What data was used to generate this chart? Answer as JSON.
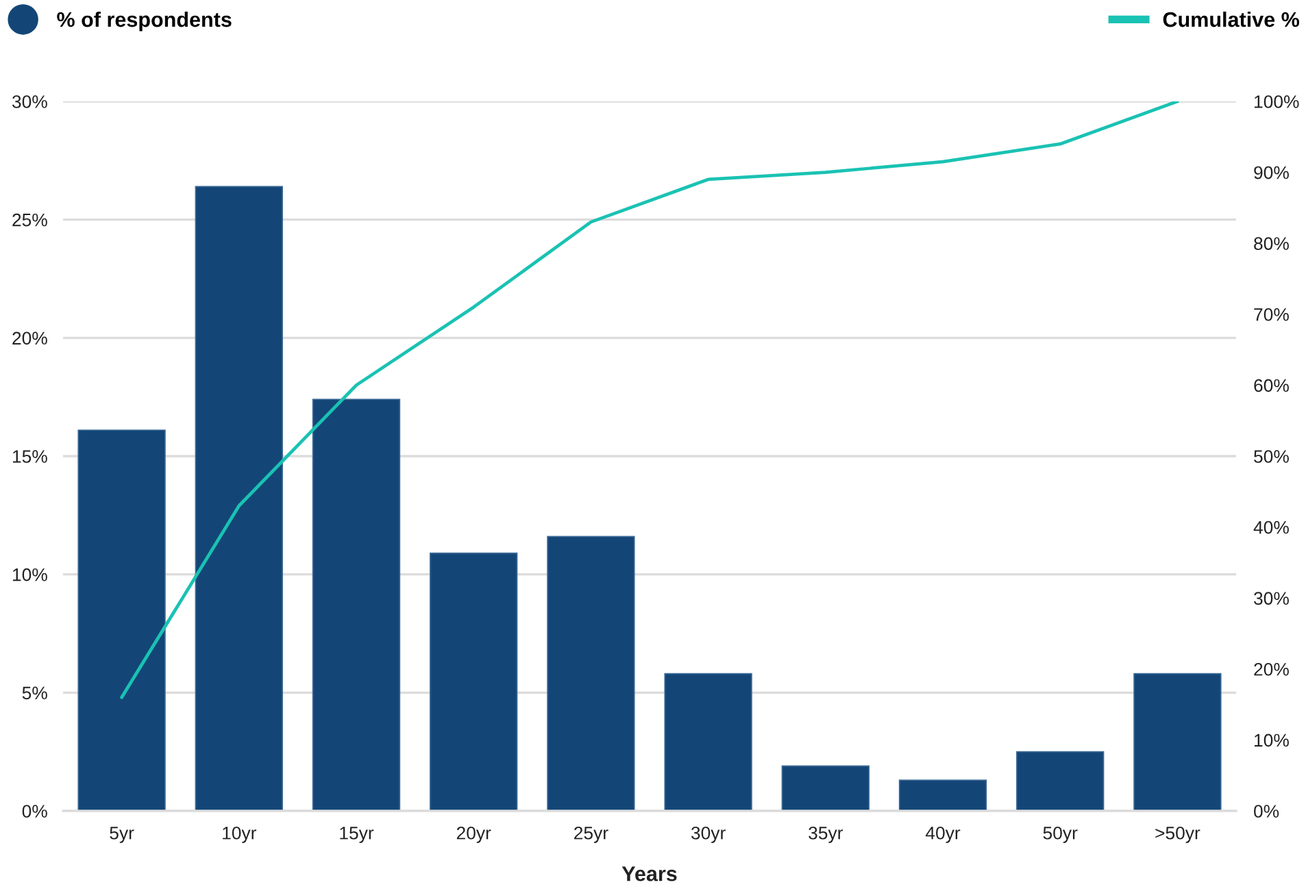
{
  "chart_data": {
    "type": "bar",
    "categories": [
      "5yr",
      "10yr",
      "15yr",
      "20yr",
      "25yr",
      "30yr",
      "35yr",
      "40yr",
      "50yr",
      ">50yr"
    ],
    "series": [
      {
        "name": "% of respondents",
        "color": "#134677",
        "values": [
          16.1,
          26.4,
          17.4,
          10.9,
          11.6,
          5.8,
          1.9,
          1.3,
          2.5,
          5.8
        ]
      },
      {
        "name": "Cumulative %",
        "type": "line",
        "axis": "y2",
        "color": "#1ac2b3",
        "values": [
          16,
          43,
          60,
          71,
          83,
          89,
          90,
          91.5,
          94,
          100
        ]
      }
    ],
    "xlabel": "Years",
    "ylim": [
      0,
      30
    ],
    "yticks": [
      {
        "value": 0,
        "label": "0%"
      },
      {
        "value": 5,
        "label": "5%"
      },
      {
        "value": 10,
        "label": "10%"
      },
      {
        "value": 15,
        "label": "15%"
      },
      {
        "value": 20,
        "label": "20%"
      },
      {
        "value": 25,
        "label": "25%"
      },
      {
        "value": 30,
        "label": "30%"
      }
    ],
    "y2lim": [
      0,
      100
    ],
    "y2ticks": [
      {
        "value": 0,
        "label": "0%"
      },
      {
        "value": 10,
        "label": "10%"
      },
      {
        "value": 20,
        "label": "20%"
      },
      {
        "value": 30,
        "label": "30%"
      },
      {
        "value": 40,
        "label": "40%"
      },
      {
        "value": 50,
        "label": "50%"
      },
      {
        "value": 60,
        "label": "60%"
      },
      {
        "value": 70,
        "label": "70%"
      },
      {
        "value": 80,
        "label": "80%"
      },
      {
        "value": 90,
        "label": "90%"
      },
      {
        "value": 100,
        "label": "100%"
      }
    ],
    "grid": "y",
    "legend": "top"
  }
}
